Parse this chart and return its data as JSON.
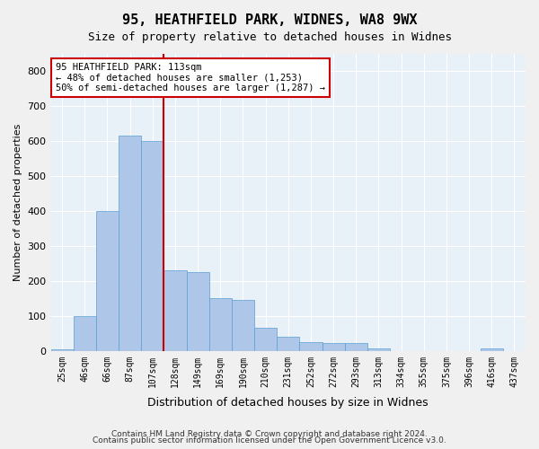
{
  "title1": "95, HEATHFIELD PARK, WIDNES, WA8 9WX",
  "title2": "Size of property relative to detached houses in Widnes",
  "xlabel": "Distribution of detached houses by size in Widnes",
  "ylabel": "Number of detached properties",
  "categories": [
    "25sqm",
    "46sqm",
    "66sqm",
    "87sqm",
    "107sqm",
    "128sqm",
    "149sqm",
    "169sqm",
    "190sqm",
    "210sqm",
    "231sqm",
    "252sqm",
    "272sqm",
    "293sqm",
    "313sqm",
    "334sqm",
    "355sqm",
    "375sqm",
    "396sqm",
    "416sqm",
    "437sqm"
  ],
  "values": [
    5,
    100,
    400,
    615,
    600,
    230,
    225,
    150,
    145,
    65,
    40,
    25,
    22,
    22,
    8,
    0,
    0,
    0,
    0,
    8,
    0
  ],
  "bar_color": "#aec6e8",
  "bar_edge_color": "#5a9fd4",
  "red_line_index": 4,
  "red_line_label": "95 HEATHFIELD PARK: 113sqm",
  "annotation_line1": "← 48% of detached houses are smaller (1,253)",
  "annotation_line2": "50% of semi-detached houses are larger (1,287) →",
  "annotation_box_color": "#ffffff",
  "annotation_box_edge": "#cc0000",
  "ylim": [
    0,
    850
  ],
  "yticks": [
    0,
    100,
    200,
    300,
    400,
    500,
    600,
    700,
    800
  ],
  "background_color": "#e8f0f8",
  "grid_color": "#ffffff",
  "footer1": "Contains HM Land Registry data © Crown copyright and database right 2024.",
  "footer2": "Contains public sector information licensed under the Open Government Licence v3.0."
}
